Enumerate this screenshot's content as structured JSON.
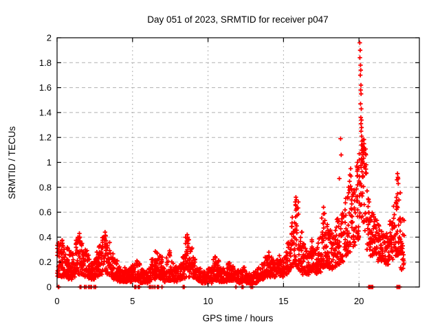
{
  "window": {
    "background": "#ffffff"
  },
  "chart_data": {
    "type": "scatter",
    "title": "Day 051 of 2023, SRMTID for receiver p047",
    "xlabel": "GPS time / hours",
    "ylabel": "SRMTID / TECUs",
    "xlim": [
      0,
      24
    ],
    "ylim": [
      0,
      2
    ],
    "xticks": [
      0,
      5,
      10,
      15,
      20
    ],
    "yticks": [
      0,
      0.2,
      0.4,
      0.6,
      0.8,
      1,
      1.2,
      1.4,
      1.6,
      1.8,
      2
    ],
    "grid": true,
    "legend": "none",
    "marker": "plus",
    "marker_color": "#ff0000",
    "grid_color": "#b0b0b0",
    "axis_color": "#000000",
    "series_name": "SRMTID",
    "random_seed": 51,
    "envelope_bins": [
      [
        0.0,
        0.25,
        0.08,
        0.36,
        30
      ],
      [
        0.25,
        0.5,
        0.08,
        0.38,
        32
      ],
      [
        0.5,
        0.75,
        0.08,
        0.34,
        32
      ],
      [
        0.75,
        1.0,
        0.06,
        0.3,
        30
      ],
      [
        1.0,
        1.25,
        0.08,
        0.28,
        30
      ],
      [
        1.25,
        1.5,
        0.1,
        0.4,
        30
      ],
      [
        1.5,
        1.75,
        0.1,
        0.36,
        28
      ],
      [
        1.75,
        2.0,
        0.08,
        0.3,
        28
      ],
      [
        2.0,
        2.25,
        0.07,
        0.26,
        28
      ],
      [
        2.25,
        2.5,
        0.06,
        0.22,
        26
      ],
      [
        2.5,
        2.75,
        0.08,
        0.28,
        26
      ],
      [
        2.75,
        3.0,
        0.1,
        0.34,
        28
      ],
      [
        3.0,
        3.25,
        0.12,
        0.42,
        28
      ],
      [
        3.25,
        3.5,
        0.1,
        0.36,
        26
      ],
      [
        3.5,
        3.75,
        0.08,
        0.28,
        26
      ],
      [
        3.75,
        4.0,
        0.06,
        0.22,
        26
      ],
      [
        4.0,
        4.25,
        0.04,
        0.17,
        26
      ],
      [
        4.25,
        4.5,
        0.04,
        0.16,
        26
      ],
      [
        4.5,
        4.75,
        0.04,
        0.15,
        26
      ],
      [
        4.75,
        5.0,
        0.04,
        0.16,
        26
      ],
      [
        5.0,
        5.25,
        0.05,
        0.18,
        26
      ],
      [
        5.25,
        5.5,
        0.05,
        0.22,
        26
      ],
      [
        5.5,
        5.75,
        0.03,
        0.14,
        24
      ],
      [
        5.75,
        6.0,
        0.03,
        0.13,
        24
      ],
      [
        6.0,
        6.25,
        0.04,
        0.15,
        24
      ],
      [
        6.25,
        6.5,
        0.06,
        0.24,
        26
      ],
      [
        6.5,
        6.75,
        0.08,
        0.3,
        26
      ],
      [
        6.75,
        7.0,
        0.06,
        0.25,
        26
      ],
      [
        7.0,
        7.25,
        0.04,
        0.18,
        24
      ],
      [
        7.25,
        7.5,
        0.05,
        0.28,
        26
      ],
      [
        7.5,
        7.75,
        0.05,
        0.22,
        24
      ],
      [
        7.75,
        8.0,
        0.04,
        0.18,
        24
      ],
      [
        8.0,
        8.25,
        0.05,
        0.2,
        26
      ],
      [
        8.25,
        8.5,
        0.06,
        0.26,
        26
      ],
      [
        8.5,
        8.75,
        0.08,
        0.4,
        28
      ],
      [
        8.75,
        9.0,
        0.08,
        0.32,
        26
      ],
      [
        9.0,
        9.25,
        0.06,
        0.25,
        24
      ],
      [
        9.25,
        9.5,
        0.04,
        0.16,
        24
      ],
      [
        9.5,
        9.75,
        0.03,
        0.13,
        24
      ],
      [
        9.75,
        10.0,
        0.03,
        0.12,
        24
      ],
      [
        10.0,
        10.25,
        0.03,
        0.15,
        24
      ],
      [
        10.25,
        10.5,
        0.05,
        0.25,
        26
      ],
      [
        10.5,
        10.75,
        0.05,
        0.22,
        26
      ],
      [
        10.75,
        11.0,
        0.04,
        0.16,
        24
      ],
      [
        11.0,
        11.25,
        0.04,
        0.15,
        24
      ],
      [
        11.25,
        11.5,
        0.05,
        0.2,
        26
      ],
      [
        11.5,
        11.75,
        0.05,
        0.18,
        24
      ],
      [
        11.75,
        12.0,
        0.04,
        0.15,
        24
      ],
      [
        12.0,
        12.25,
        0.03,
        0.14,
        24
      ],
      [
        12.25,
        12.5,
        0.04,
        0.16,
        24
      ],
      [
        12.5,
        12.75,
        0.03,
        0.12,
        24
      ],
      [
        12.75,
        13.0,
        0.02,
        0.1,
        24
      ],
      [
        13.0,
        13.25,
        0.03,
        0.13,
        24
      ],
      [
        13.25,
        13.5,
        0.05,
        0.16,
        24
      ],
      [
        13.5,
        13.75,
        0.06,
        0.2,
        26
      ],
      [
        13.75,
        14.0,
        0.08,
        0.26,
        26
      ],
      [
        14.0,
        14.25,
        0.08,
        0.28,
        26
      ],
      [
        14.25,
        14.5,
        0.08,
        0.22,
        26
      ],
      [
        14.5,
        14.75,
        0.1,
        0.26,
        26
      ],
      [
        14.75,
        15.0,
        0.08,
        0.22,
        26
      ],
      [
        15.0,
        15.25,
        0.1,
        0.28,
        26
      ],
      [
        15.25,
        15.5,
        0.12,
        0.36,
        26
      ],
      [
        15.5,
        15.75,
        0.15,
        0.58,
        28
      ],
      [
        15.75,
        16.0,
        0.15,
        0.7,
        30
      ],
      [
        16.0,
        16.25,
        0.12,
        0.55,
        28
      ],
      [
        16.25,
        16.5,
        0.1,
        0.35,
        26
      ],
      [
        16.5,
        16.75,
        0.1,
        0.3,
        26
      ],
      [
        16.75,
        17.0,
        0.12,
        0.38,
        26
      ],
      [
        17.0,
        17.25,
        0.1,
        0.32,
        26
      ],
      [
        17.25,
        17.5,
        0.12,
        0.4,
        26
      ],
      [
        17.5,
        17.75,
        0.15,
        0.62,
        28
      ],
      [
        17.75,
        18.0,
        0.15,
        0.55,
        28
      ],
      [
        18.0,
        18.25,
        0.12,
        0.46,
        26
      ],
      [
        18.25,
        18.5,
        0.15,
        0.46,
        26
      ],
      [
        18.5,
        18.75,
        0.18,
        0.55,
        26
      ],
      [
        18.75,
        19.0,
        0.2,
        0.62,
        26
      ],
      [
        19.0,
        19.25,
        0.25,
        0.72,
        26
      ],
      [
        19.25,
        19.5,
        0.28,
        0.9,
        26
      ],
      [
        19.5,
        19.75,
        0.3,
        0.82,
        26
      ],
      [
        19.75,
        20.0,
        0.38,
        1.0,
        28
      ],
      [
        20.0,
        20.25,
        0.55,
        1.2,
        30
      ],
      [
        20.25,
        20.5,
        0.45,
        1.2,
        28
      ],
      [
        20.5,
        20.75,
        0.3,
        0.78,
        26
      ],
      [
        20.75,
        21.0,
        0.25,
        0.62,
        26
      ],
      [
        21.0,
        21.25,
        0.25,
        0.56,
        26
      ],
      [
        21.25,
        21.5,
        0.2,
        0.5,
        26
      ],
      [
        21.5,
        21.75,
        0.2,
        0.46,
        26
      ],
      [
        21.75,
        22.0,
        0.18,
        0.48,
        26
      ],
      [
        22.0,
        22.25,
        0.22,
        0.56,
        26
      ],
      [
        22.25,
        22.5,
        0.25,
        0.75,
        26
      ],
      [
        22.5,
        22.75,
        0.25,
        0.88,
        28
      ],
      [
        22.75,
        23.0,
        0.12,
        0.55,
        22
      ]
    ],
    "peak_points": [
      [
        1.48,
        0.43
      ],
      [
        1.5,
        0.4
      ],
      [
        1.52,
        0.37
      ],
      [
        3.18,
        0.44
      ],
      [
        3.22,
        0.41
      ],
      [
        3.15,
        0.38
      ],
      [
        7.45,
        0.29
      ],
      [
        8.62,
        0.42
      ],
      [
        8.65,
        0.4
      ],
      [
        8.6,
        0.37
      ],
      [
        8.68,
        0.35
      ],
      [
        8.63,
        0.32
      ],
      [
        15.82,
        0.72
      ],
      [
        15.85,
        0.7
      ],
      [
        15.8,
        0.66
      ],
      [
        15.88,
        0.63
      ],
      [
        17.65,
        0.64
      ],
      [
        18.7,
        0.87
      ],
      [
        18.78,
        1.19
      ],
      [
        18.82,
        1.06
      ],
      [
        19.4,
        0.9
      ],
      [
        19.45,
        0.95
      ],
      [
        19.85,
        0.97
      ],
      [
        19.9,
        1.0
      ],
      [
        20.05,
        1.96
      ],
      [
        20.08,
        1.9
      ],
      [
        20.06,
        1.84
      ],
      [
        20.1,
        1.78
      ],
      [
        20.12,
        1.74
      ],
      [
        20.09,
        1.7
      ],
      [
        20.13,
        1.62
      ],
      [
        20.11,
        1.58
      ],
      [
        20.14,
        1.55
      ],
      [
        20.1,
        1.47
      ],
      [
        20.15,
        1.43
      ],
      [
        20.12,
        1.36
      ],
      [
        20.16,
        1.34
      ],
      [
        20.13,
        1.31
      ],
      [
        20.17,
        1.28
      ],
      [
        20.14,
        1.25
      ],
      [
        20.18,
        1.21
      ],
      [
        20.2,
        1.17
      ],
      [
        20.25,
        1.13
      ],
      [
        20.22,
        1.1
      ],
      [
        20.28,
        1.08
      ],
      [
        20.3,
        1.12
      ],
      [
        20.24,
        1.06
      ],
      [
        20.33,
        1.15
      ],
      [
        20.27,
        1.18
      ],
      [
        22.55,
        0.91
      ],
      [
        22.58,
        0.88
      ],
      [
        22.52,
        0.86
      ],
      [
        22.6,
        0.83
      ],
      [
        22.85,
        0.35
      ],
      [
        22.9,
        0.28
      ],
      [
        22.88,
        0.22
      ],
      [
        22.92,
        0.15
      ]
    ],
    "baseline_markers": [
      0.08,
      0.12,
      1.52,
      1.58,
      1.82,
      1.92,
      2.08,
      2.18,
      2.28,
      2.45,
      2.55,
      5.15,
      5.22,
      5.38,
      5.45,
      6.12,
      6.22,
      6.35,
      6.48,
      6.65,
      6.72,
      6.95,
      8.35,
      8.42,
      11.85,
      12.25,
      12.32,
      12.85,
      12.95,
      20.65,
      20.73,
      20.82,
      20.91,
      22.52,
      22.61,
      22.7
    ]
  }
}
